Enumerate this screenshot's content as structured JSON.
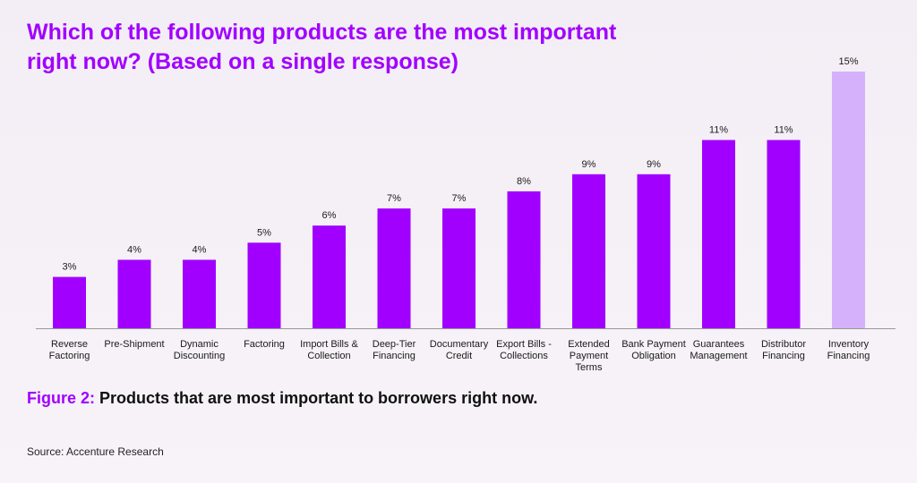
{
  "title": "Which of the following products are the most important right now? (Based on a single response)",
  "caption": {
    "figure_label": "Figure 2:",
    "text": "Products that are most important to borrowers right now."
  },
  "source": "Source: Accenture Research",
  "colors": {
    "accent": "#a100ff",
    "bar": "#a100ff",
    "highlight_bar": "#d5b0fb",
    "axis": "#999999"
  },
  "chart_data": {
    "type": "bar",
    "categories": [
      [
        "Reverse",
        "Factoring"
      ],
      [
        "Pre-Shipment"
      ],
      [
        "Dynamic",
        "Discounting"
      ],
      [
        "Factoring"
      ],
      [
        "Import Bills &",
        "Collection"
      ],
      [
        "Deep-Tier",
        "Financing"
      ],
      [
        "Documentary",
        "Credit"
      ],
      [
        "Export Bills -",
        "Collections"
      ],
      [
        "Extended",
        "Payment",
        "Terms"
      ],
      [
        "Bank Payment",
        "Obligation"
      ],
      [
        "Guarantees",
        "Management"
      ],
      [
        "Distributor",
        "Financing"
      ],
      [
        "Inventory",
        "Financing"
      ]
    ],
    "values": [
      3,
      4,
      4,
      5,
      6,
      7,
      7,
      8,
      9,
      9,
      11,
      11,
      15
    ],
    "value_labels": [
      "3%",
      "4%",
      "4%",
      "5%",
      "6%",
      "7%",
      "7%",
      "8%",
      "9%",
      "9%",
      "11%",
      "11%",
      "15%"
    ],
    "highlight_index": 12,
    "ylim": [
      0,
      15
    ],
    "grid": false,
    "legend": "none"
  }
}
